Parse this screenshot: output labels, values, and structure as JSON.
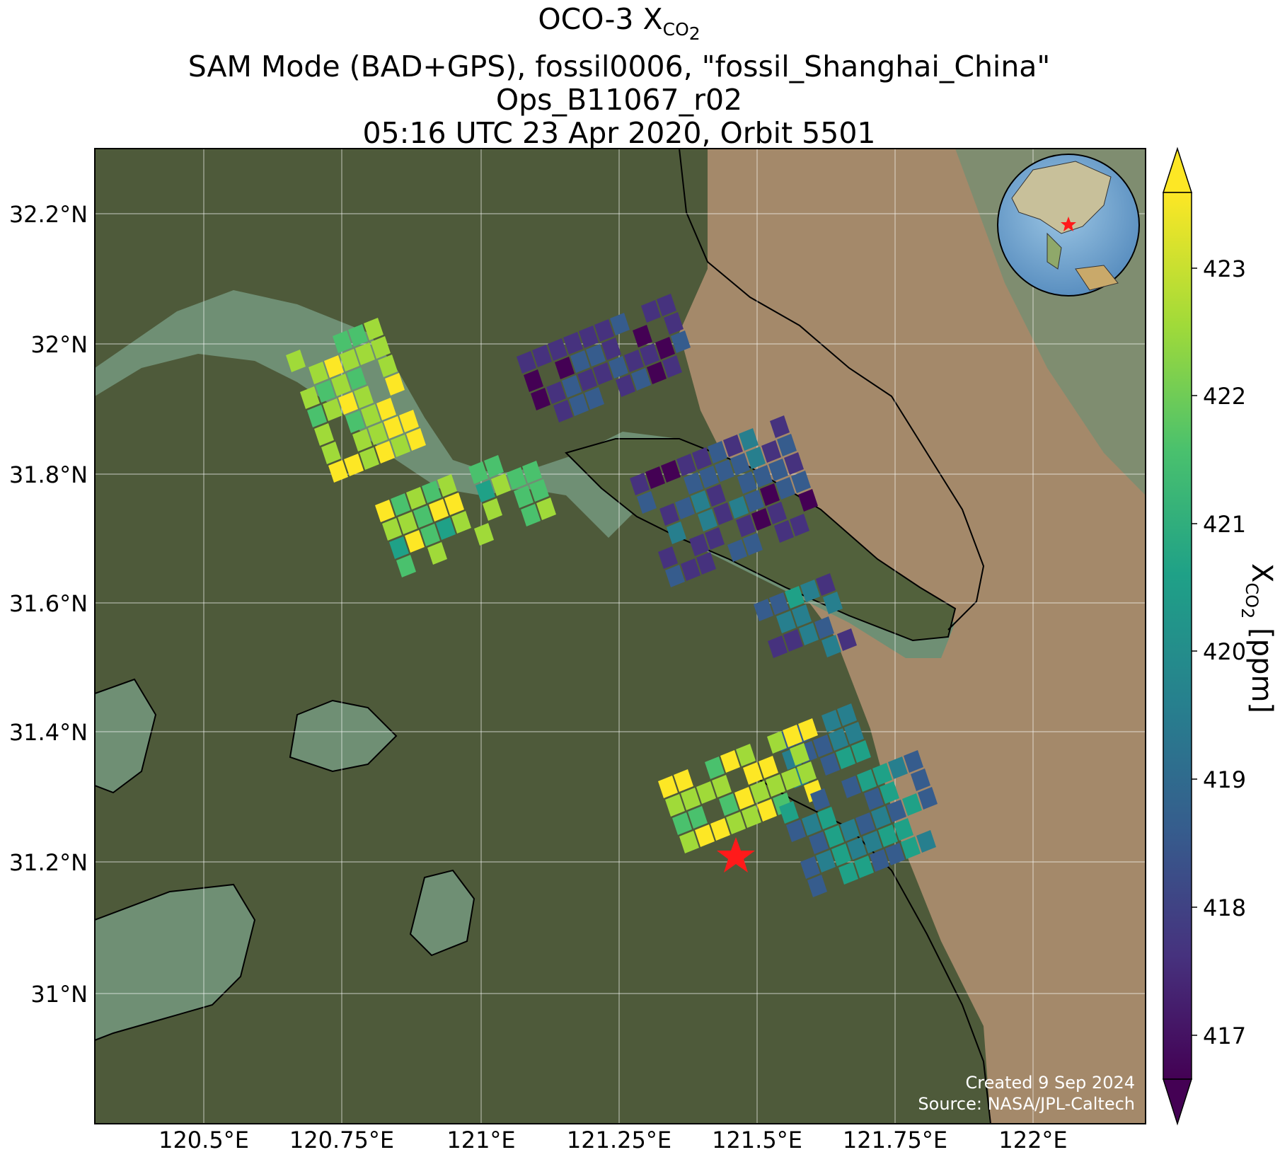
{
  "title": {
    "line1_prefix": "OCO-3 X",
    "line1_sub": "CO",
    "line1_sub2": "2",
    "line2": "SAM Mode (BAD+GPS), fossil0006, \"fossil_Shanghai_China\"",
    "line3": "Ops_B11067_r02",
    "line4": "05:16 UTC 23 Apr 2020, Orbit 5501"
  },
  "map": {
    "extent": {
      "lon": [
        120.3,
        122.37
      ],
      "lat": [
        30.85,
        32.3
      ]
    },
    "lon_ticks": [
      "120.5°E",
      "120.75°E",
      "121°E",
      "121.25°E",
      "121.5°E",
      "121.75°E",
      "122°E"
    ],
    "lat_ticks": [
      "31°N",
      "31.2°N",
      "31.4°N",
      "31.6°N",
      "31.8°N",
      "32°N",
      "32.2°N"
    ],
    "target": {
      "name": "fossil_Shanghai_China",
      "lon": 121.47,
      "lat": 31.22,
      "marker": "red-star"
    },
    "credit_line1": "Created 9 Sep 2024",
    "credit_line2": "Source: NASA/JPL-Caltech",
    "inset": "globe-icon"
  },
  "colorbar": {
    "label_prefix": "X",
    "label_sub": "CO",
    "label_sub2": "2",
    "label_suffix": " [ppm]",
    "min": 416.6,
    "max": 423.6,
    "ticks": [
      "417",
      "418",
      "419",
      "420",
      "421",
      "422",
      "423"
    ],
    "colormap": "viridis",
    "extend": "both"
  },
  "colors": {
    "land": "#4e5a3a",
    "water": "#6f8f74",
    "sea": "#a4896a",
    "coastline": "#000000",
    "target_star": "#ff1a1a"
  }
}
